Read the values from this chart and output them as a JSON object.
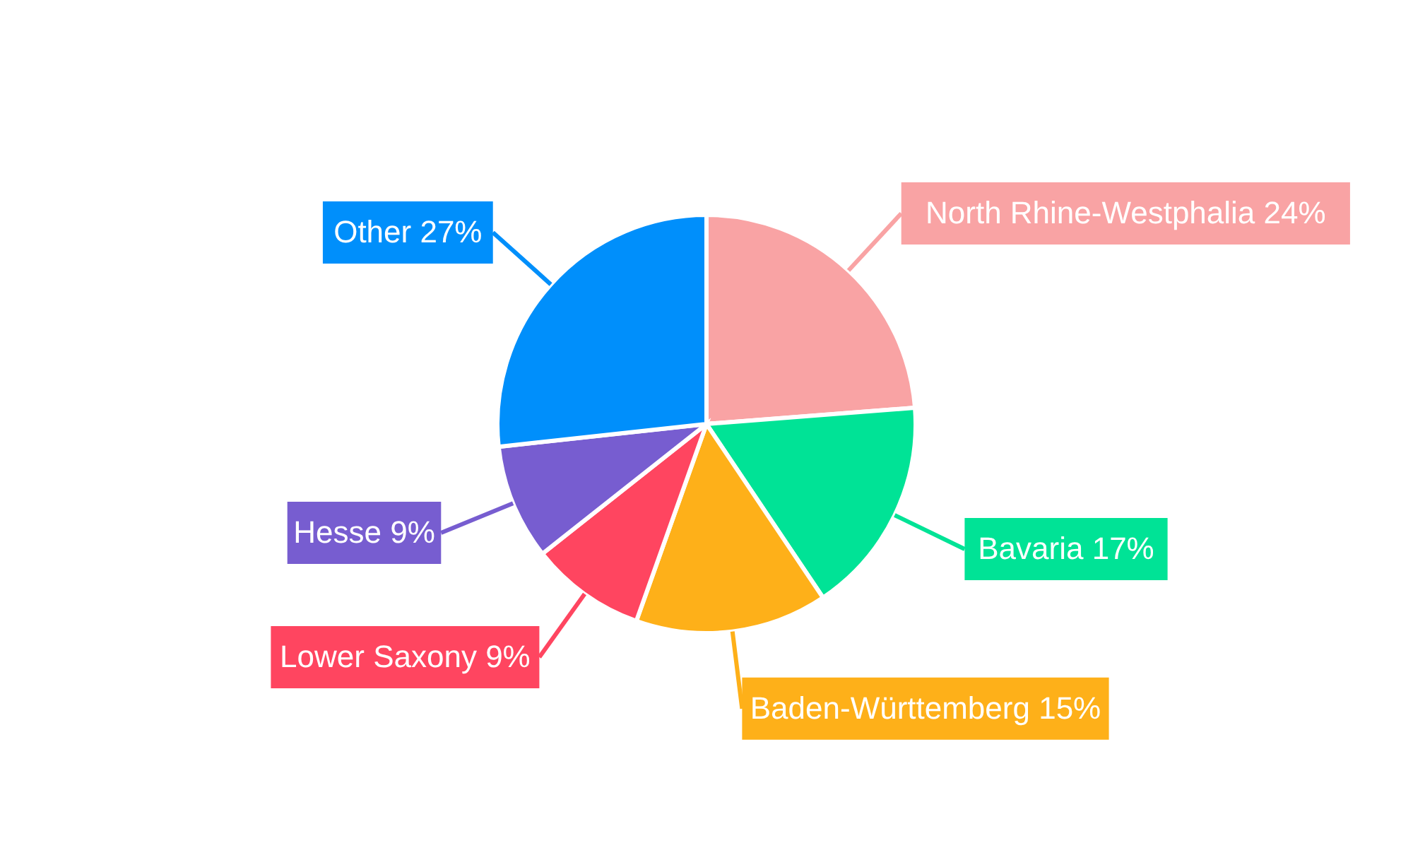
{
  "chart_data": {
    "type": "pie",
    "categories": [
      "North Rhine-Westphalia",
      "Bavaria",
      "Baden-Württemberg",
      "Lower Saxony",
      "Hesse",
      "Other"
    ],
    "values": [
      24,
      17,
      15,
      9,
      9,
      27
    ],
    "value_labels": [
      "24%",
      "17%",
      "15%",
      "9%",
      "9%",
      "27%"
    ],
    "colors": [
      "#f9a3a4",
      "#00e396",
      "#feb019",
      "#ff4560",
      "#775dd0",
      "#008ffb"
    ]
  }
}
